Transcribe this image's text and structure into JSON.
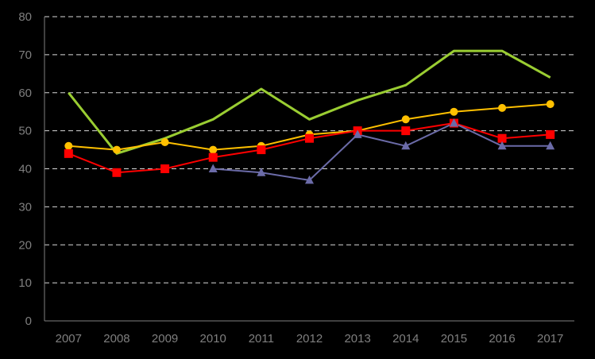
{
  "chart_data": {
    "type": "line",
    "title": "",
    "xlabel": "",
    "ylabel": "",
    "x": [
      "2007",
      "2008",
      "2009",
      "2010",
      "2011",
      "2012",
      "2013",
      "2014",
      "2015",
      "2016",
      "2017"
    ],
    "ylim": [
      0,
      80
    ],
    "yticks": [
      0,
      10,
      20,
      30,
      40,
      50,
      60,
      70,
      80
    ],
    "grid": true,
    "legend": "none",
    "background": "#000000",
    "series": [
      {
        "color": "#9acd32",
        "marker": "none",
        "values": [
          60,
          44,
          48,
          53,
          61,
          53,
          58,
          62,
          71,
          71,
          64
        ]
      },
      {
        "color": "#ffc000",
        "marker": "circle",
        "values": [
          46,
          45,
          47,
          45,
          46,
          49,
          50,
          53,
          55,
          56,
          57
        ]
      },
      {
        "color": "#ff0000",
        "marker": "square",
        "values": [
          44,
          39,
          40,
          43,
          45,
          48,
          50,
          50,
          52,
          48,
          49
        ]
      },
      {
        "color": "#6b6ba8",
        "marker": "triangle",
        "values": [
          null,
          null,
          null,
          40,
          39,
          37,
          49,
          46,
          52,
          46,
          46
        ]
      }
    ]
  }
}
